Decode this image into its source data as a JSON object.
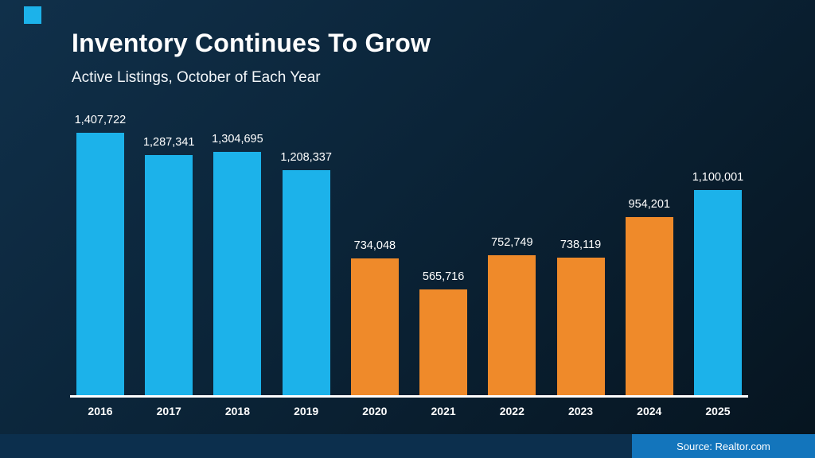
{
  "header": {
    "title": "Inventory Continues To Grow",
    "subtitle": "Active Listings, October of Each Year"
  },
  "footer": {
    "source": "Source: Realtor.com"
  },
  "colors": {
    "blue": "#1cb2ea",
    "orange": "#ef8a2a",
    "footer_bar": "#0c2f4d",
    "source_box": "#1375bc",
    "baseline": "#ffffff"
  },
  "chart_data": {
    "type": "bar",
    "title": "Inventory Continues To Grow",
    "subtitle": "Active Listings, October of Each Year",
    "xlabel": "",
    "ylabel": "",
    "ylim": [
      0,
      1450000
    ],
    "grid": false,
    "legend": false,
    "categories": [
      "2016",
      "2017",
      "2018",
      "2019",
      "2020",
      "2021",
      "2022",
      "2023",
      "2024",
      "2025"
    ],
    "values": [
      1407722,
      1287341,
      1304695,
      1208337,
      734048,
      565716,
      752749,
      738119,
      954201,
      1100001
    ],
    "value_labels": [
      "1,407,722",
      "1,287,341",
      "1,304,695",
      "1,208,337",
      "734,048",
      "565,716",
      "752,749",
      "738,119",
      "954,201",
      "1,100,001"
    ],
    "bar_colors": [
      "blue",
      "blue",
      "blue",
      "blue",
      "orange",
      "orange",
      "orange",
      "orange",
      "orange",
      "blue"
    ]
  }
}
